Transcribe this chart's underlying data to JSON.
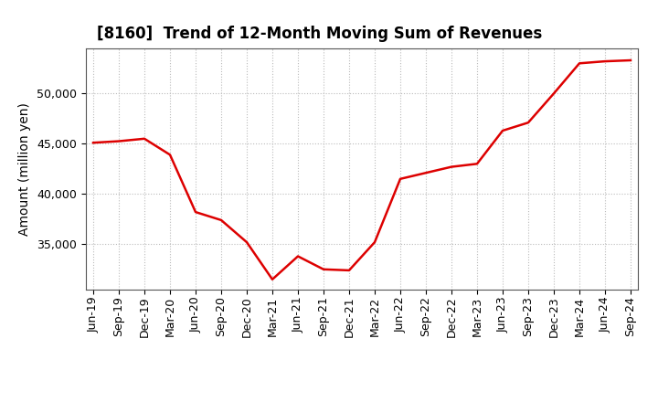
{
  "title": "[8160]  Trend of 12-Month Moving Sum of Revenues",
  "ylabel": "Amount (million yen)",
  "line_color": "#dd0000",
  "background_color": "#ffffff",
  "plot_bg_color": "#ffffff",
  "grid_color": "#bbbbbb",
  "x_labels": [
    "Jun-19",
    "Sep-19",
    "Dec-19",
    "Mar-20",
    "Jun-20",
    "Sep-20",
    "Dec-20",
    "Mar-21",
    "Jun-21",
    "Sep-21",
    "Dec-21",
    "Mar-22",
    "Jun-22",
    "Sep-22",
    "Dec-22",
    "Mar-23",
    "Jun-23",
    "Sep-23",
    "Dec-23",
    "Mar-24",
    "Jun-24",
    "Sep-24"
  ],
  "values": [
    45100,
    45250,
    45500,
    43900,
    38200,
    37400,
    35200,
    31500,
    33800,
    32500,
    32400,
    35200,
    41500,
    42100,
    42700,
    43000,
    46300,
    47100,
    50000,
    53000,
    53200,
    53300
  ],
  "ylim": [
    30500,
    54500
  ],
  "yticks": [
    35000,
    40000,
    45000,
    50000
  ],
  "title_fontsize": 12,
  "ylabel_fontsize": 10,
  "tick_fontsize": 9,
  "line_width": 1.8
}
